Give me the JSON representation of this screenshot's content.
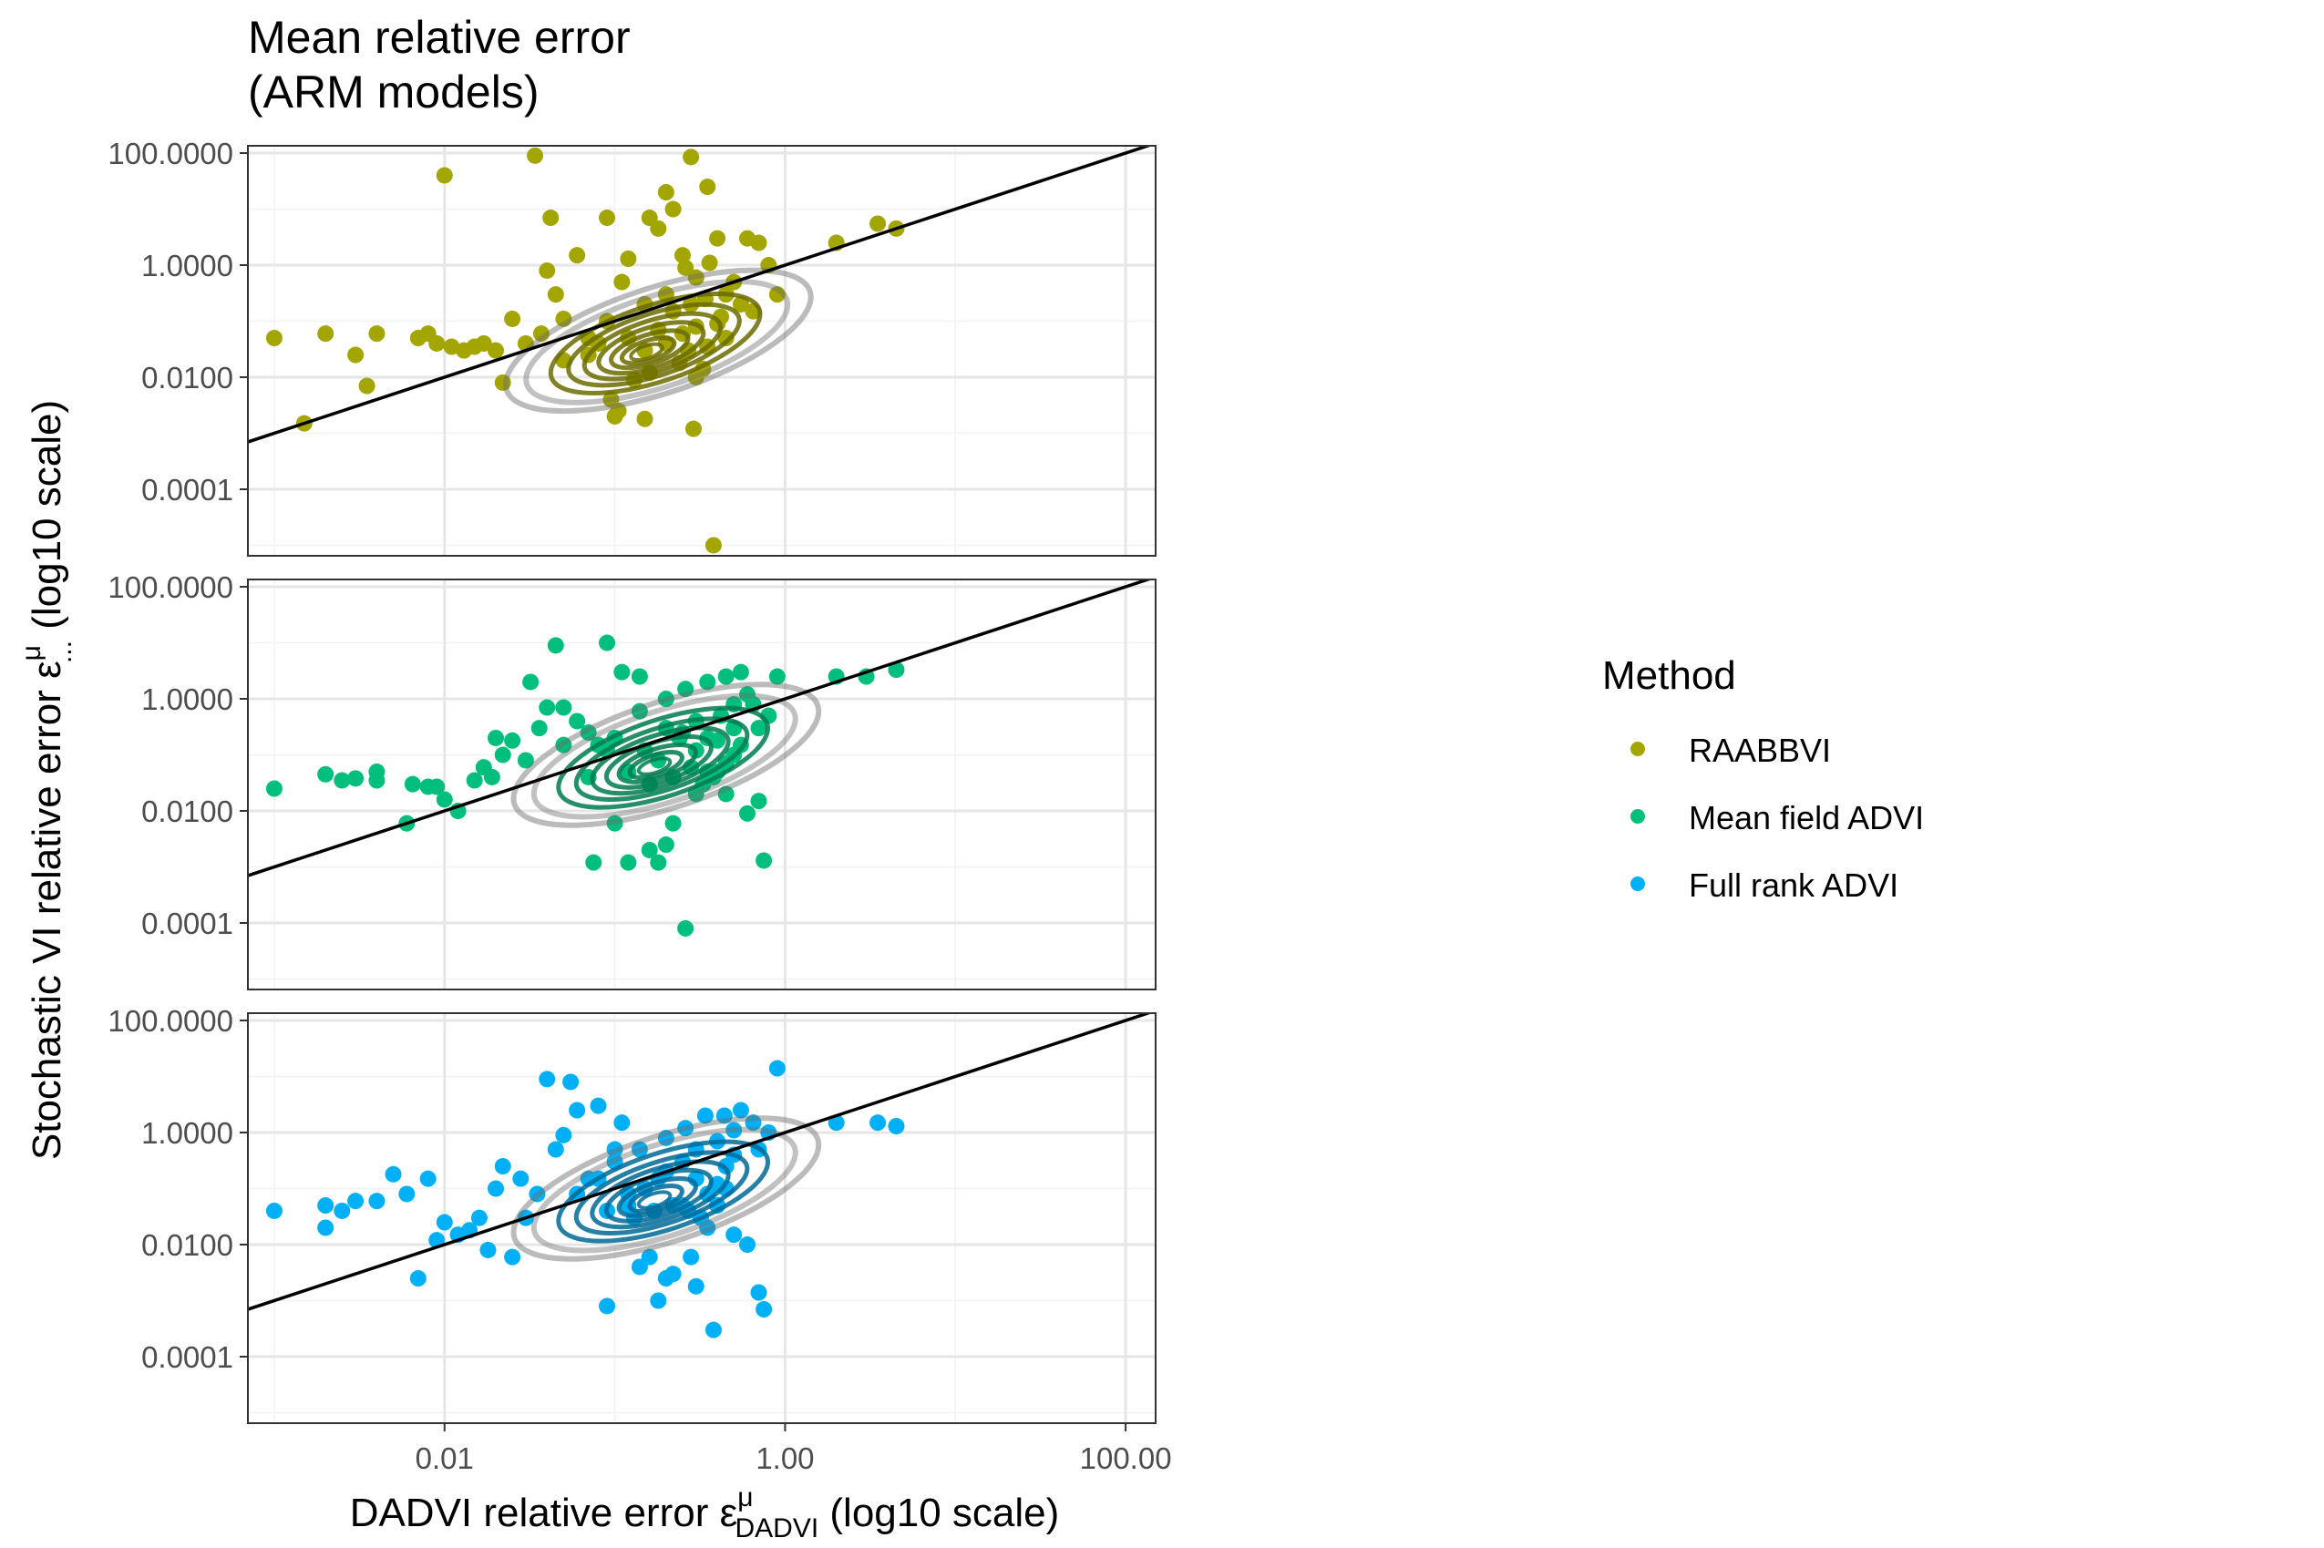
{
  "chart_data": {
    "type": "scatter",
    "title_lines": [
      "Mean relative error",
      "(ARM models)"
    ],
    "xlabel_parts": {
      "main": "DADVI relative error ε",
      "sup": "μ",
      "sub": "DADVI",
      "tail": " (log10 scale)"
    },
    "ylabel_parts": {
      "main": "Stochastic VI relative error ε",
      "sup": "μ",
      "sub": "...",
      "tail": " (log10 scale)"
    },
    "x_scale": "log10",
    "y_scale": "log10",
    "xlim": [
      0.0007,
      150
    ],
    "ylim": [
      6.5e-06,
      135
    ],
    "x_ticks": [
      {
        "value": 0.01,
        "label": "0.01"
      },
      {
        "value": 1,
        "label": "1.00"
      },
      {
        "value": 100,
        "label": "100.00"
      }
    ],
    "y_ticks": [
      {
        "value": 100,
        "label": "100.0000"
      },
      {
        "value": 1,
        "label": "1.0000"
      },
      {
        "value": 0.01,
        "label": "0.0100"
      },
      {
        "value": 0.0001,
        "label": "0.0001"
      }
    ],
    "grid": true,
    "reference_line": {
      "slope": 1,
      "intercept": 0
    },
    "legend": {
      "title": "Method",
      "position": "right",
      "entries": [
        {
          "label": "RAABBVI",
          "color": "#A3A500"
        },
        {
          "label": "Mean field ADVI",
          "color": "#00BF7D"
        },
        {
          "label": "Full rank ADVI",
          "color": "#00B0F6"
        }
      ]
    },
    "panels": [
      {
        "method": "RAABBVI",
        "color": "#A3A500",
        "contour_color": "#6b6b00",
        "density_center": [
          0.18,
          0.045
        ],
        "points": [
          [
            0.001,
            0.05
          ],
          [
            0.002,
            0.06
          ],
          [
            0.003,
            0.025
          ],
          [
            0.0035,
            0.007
          ],
          [
            0.004,
            0.06
          ],
          [
            0.0015,
            0.0015
          ],
          [
            0.007,
            0.05
          ],
          [
            0.008,
            0.06
          ],
          [
            0.009,
            0.04
          ],
          [
            0.01,
            40
          ],
          [
            0.011,
            0.035
          ],
          [
            0.013,
            0.03
          ],
          [
            0.015,
            0.035
          ],
          [
            0.017,
            0.04
          ],
          [
            0.02,
            0.03
          ],
          [
            0.022,
            0.008
          ],
          [
            0.025,
            0.11
          ],
          [
            0.03,
            0.04
          ],
          [
            0.034,
            90
          ],
          [
            0.037,
            0.06
          ],
          [
            0.04,
            0.8
          ],
          [
            0.042,
            7
          ],
          [
            0.045,
            0.3
          ],
          [
            0.05,
            0.11
          ],
          [
            0.06,
            1.5
          ],
          [
            0.07,
            0.05
          ],
          [
            0.08,
            0.04
          ],
          [
            0.09,
            7
          ],
          [
            0.095,
            0.004
          ],
          [
            0.1,
            0.002
          ],
          [
            0.105,
            0.0025
          ],
          [
            0.11,
            0.5
          ],
          [
            0.12,
            1.3
          ],
          [
            0.13,
            0.009
          ],
          [
            0.15,
            0.0018
          ],
          [
            0.16,
            7
          ],
          [
            0.18,
            4.5
          ],
          [
            0.2,
            20
          ],
          [
            0.22,
            10
          ],
          [
            0.25,
            1.5
          ],
          [
            0.27,
            0.03
          ],
          [
            0.28,
            85
          ],
          [
            0.29,
            0.0012
          ],
          [
            0.3,
            0.01
          ],
          [
            0.35,
            25
          ],
          [
            0.4,
            3
          ],
          [
            0.45,
            0.3
          ],
          [
            0.5,
            0.5
          ],
          [
            0.6,
            3
          ],
          [
            0.7,
            2.5
          ],
          [
            0.8,
            1
          ],
          [
            0.9,
            0.3
          ],
          [
            2,
            2.5
          ],
          [
            3.5,
            5.5
          ],
          [
            4.5,
            4.5
          ],
          [
            0.12,
            0.05
          ],
          [
            0.15,
            0.03
          ],
          [
            0.18,
            0.07
          ],
          [
            0.2,
            0.04
          ],
          [
            0.25,
            0.06
          ],
          [
            0.3,
            0.08
          ],
          [
            0.35,
            0.035
          ],
          [
            0.4,
            0.09
          ],
          [
            0.45,
            0.05
          ],
          [
            0.05,
            0.02
          ],
          [
            0.07,
            0.025
          ],
          [
            0.09,
            0.1
          ],
          [
            0.15,
            0.2
          ],
          [
            0.22,
            0.15
          ],
          [
            0.28,
            0.2
          ],
          [
            0.34,
            0.25
          ],
          [
            0.16,
            0.012
          ],
          [
            0.24,
            0.018
          ],
          [
            0.33,
            0.014
          ],
          [
            0.2,
            0.3
          ],
          [
            0.3,
            0.6
          ],
          [
            0.55,
            0.2
          ],
          [
            0.65,
            0.15
          ],
          [
            0.42,
            0.12
          ],
          [
            0.36,
            1.1
          ],
          [
            0.26,
            0.9
          ],
          [
            0.38,
            1e-05
          ]
        ]
      },
      {
        "method": "Mean field ADVI",
        "color": "#00BF7D",
        "contour_color": "#007a4f",
        "density_center": [
          0.2,
          0.1
        ],
        "points": [
          [
            0.001,
            0.025
          ],
          [
            0.002,
            0.045
          ],
          [
            0.0025,
            0.035
          ],
          [
            0.003,
            0.038
          ],
          [
            0.004,
            0.035
          ],
          [
            0.004,
            0.05
          ],
          [
            0.006,
            0.006
          ],
          [
            0.0065,
            0.03
          ],
          [
            0.008,
            0.027
          ],
          [
            0.009,
            0.027
          ],
          [
            0.01,
            0.016
          ],
          [
            0.012,
            0.01
          ],
          [
            0.015,
            0.035
          ],
          [
            0.017,
            0.06
          ],
          [
            0.019,
            0.04
          ],
          [
            0.02,
            0.2
          ],
          [
            0.022,
            0.1
          ],
          [
            0.025,
            0.18
          ],
          [
            0.03,
            0.08
          ],
          [
            0.032,
            2
          ],
          [
            0.036,
            0.3
          ],
          [
            0.04,
            0.7
          ],
          [
            0.045,
            9
          ],
          [
            0.05,
            0.7
          ],
          [
            0.06,
            0.4
          ],
          [
            0.07,
            0.04
          ],
          [
            0.075,
            0.0012
          ],
          [
            0.08,
            0.15
          ],
          [
            0.09,
            10
          ],
          [
            0.1,
            0.006
          ],
          [
            0.11,
            3
          ],
          [
            0.12,
            0.0012
          ],
          [
            0.14,
            2.5
          ],
          [
            0.16,
            0.002
          ],
          [
            0.18,
            0.0012
          ],
          [
            0.2,
            0.0025
          ],
          [
            0.22,
            0.006
          ],
          [
            0.24,
            0.2
          ],
          [
            0.26,
            8e-05
          ],
          [
            0.3,
            0.02
          ],
          [
            0.35,
            0.05
          ],
          [
            0.4,
            0.05
          ],
          [
            0.45,
            0.07
          ],
          [
            0.5,
            0.1
          ],
          [
            0.55,
            0.15
          ],
          [
            0.6,
            0.009
          ],
          [
            0.7,
            0.015
          ],
          [
            0.75,
            0.0013
          ],
          [
            0.8,
            0.5
          ],
          [
            0.9,
            2.5
          ],
          [
            2,
            2.5
          ],
          [
            3,
            2.5
          ],
          [
            4.5,
            3.3
          ],
          [
            0.15,
            0.12
          ],
          [
            0.2,
            0.3
          ],
          [
            0.25,
            0.25
          ],
          [
            0.3,
            0.4
          ],
          [
            0.35,
            0.2
          ],
          [
            0.42,
            0.5
          ],
          [
            0.5,
            0.8
          ],
          [
            0.6,
            1.2
          ],
          [
            0.12,
            0.05
          ],
          [
            0.18,
            0.08
          ],
          [
            0.22,
            0.04
          ],
          [
            0.28,
            0.06
          ],
          [
            0.33,
            0.03
          ],
          [
            0.38,
            0.04
          ],
          [
            0.45,
            0.02
          ],
          [
            0.1,
            0.2
          ],
          [
            0.14,
            0.6
          ],
          [
            0.2,
            1
          ],
          [
            0.26,
            1.5
          ],
          [
            0.35,
            2
          ],
          [
            0.45,
            2.5
          ],
          [
            0.55,
            3
          ],
          [
            0.65,
            0.8
          ],
          [
            0.7,
            0.3
          ],
          [
            0.05,
            0.15
          ],
          [
            0.07,
            0.25
          ],
          [
            0.09,
            0.12
          ],
          [
            0.16,
            0.03
          ],
          [
            0.3,
            0.12
          ],
          [
            0.4,
            0.18
          ],
          [
            0.5,
            0.3
          ]
        ]
      },
      {
        "method": "Full rank ADVI",
        "color": "#00B0F6",
        "contour_color": "#006a96",
        "density_center": [
          0.2,
          0.1
        ],
        "points": [
          [
            0.001,
            0.04
          ],
          [
            0.002,
            0.05
          ],
          [
            0.002,
            0.02
          ],
          [
            0.0025,
            0.04
          ],
          [
            0.003,
            0.06
          ],
          [
            0.004,
            0.06
          ],
          [
            0.005,
            0.18
          ],
          [
            0.006,
            0.08
          ],
          [
            0.007,
            0.0025
          ],
          [
            0.008,
            0.15
          ],
          [
            0.009,
            0.012
          ],
          [
            0.01,
            0.025
          ],
          [
            0.012,
            0.015
          ],
          [
            0.014,
            0.018
          ],
          [
            0.016,
            0.03
          ],
          [
            0.018,
            0.008
          ],
          [
            0.02,
            0.1
          ],
          [
            0.022,
            0.25
          ],
          [
            0.025,
            0.006
          ],
          [
            0.028,
            0.15
          ],
          [
            0.03,
            0.03
          ],
          [
            0.035,
            0.08
          ],
          [
            0.04,
            9
          ],
          [
            0.045,
            0.5
          ],
          [
            0.05,
            0.9
          ],
          [
            0.055,
            8
          ],
          [
            0.06,
            2.5
          ],
          [
            0.07,
            0.15
          ],
          [
            0.08,
            3
          ],
          [
            0.09,
            0.0008
          ],
          [
            0.1,
            0.5
          ],
          [
            0.11,
            1.5
          ],
          [
            0.12,
            0.05
          ],
          [
            0.14,
            0.004
          ],
          [
            0.16,
            0.006
          ],
          [
            0.18,
            0.001
          ],
          [
            0.2,
            0.0025
          ],
          [
            0.22,
            0.003
          ],
          [
            0.25,
            0.05
          ],
          [
            0.28,
            0.006
          ],
          [
            0.3,
            0.0018
          ],
          [
            0.35,
            0.02
          ],
          [
            0.38,
            0.0003
          ],
          [
            0.4,
            0.05
          ],
          [
            0.45,
            0.1
          ],
          [
            0.5,
            0.015
          ],
          [
            0.6,
            0.01
          ],
          [
            0.7,
            0.0014
          ],
          [
            0.75,
            0.0007
          ],
          [
            0.8,
            1
          ],
          [
            0.9,
            14
          ],
          [
            2,
            1.5
          ],
          [
            3.5,
            1.5
          ],
          [
            4.5,
            1.3
          ],
          [
            0.12,
            0.08
          ],
          [
            0.15,
            0.1
          ],
          [
            0.18,
            0.15
          ],
          [
            0.2,
            0.2
          ],
          [
            0.25,
            0.3
          ],
          [
            0.3,
            0.15
          ],
          [
            0.35,
            0.08
          ],
          [
            0.4,
            0.12
          ],
          [
            0.45,
            0.25
          ],
          [
            0.5,
            0.4
          ],
          [
            0.13,
            0.03
          ],
          [
            0.17,
            0.04
          ],
          [
            0.22,
            0.05
          ],
          [
            0.27,
            0.04
          ],
          [
            0.32,
            0.03
          ],
          [
            0.1,
            0.3
          ],
          [
            0.14,
            0.5
          ],
          [
            0.2,
            0.8
          ],
          [
            0.26,
            1.2
          ],
          [
            0.34,
            2
          ],
          [
            0.44,
            2
          ],
          [
            0.55,
            2.5
          ],
          [
            0.65,
            1.5
          ],
          [
            0.7,
            0.5
          ],
          [
            0.06,
            0.08
          ],
          [
            0.08,
            0.15
          ],
          [
            0.09,
            0.04
          ],
          [
            0.3,
            0.5
          ],
          [
            0.4,
            0.7
          ],
          [
            0.5,
            1.1
          ]
        ]
      }
    ]
  }
}
